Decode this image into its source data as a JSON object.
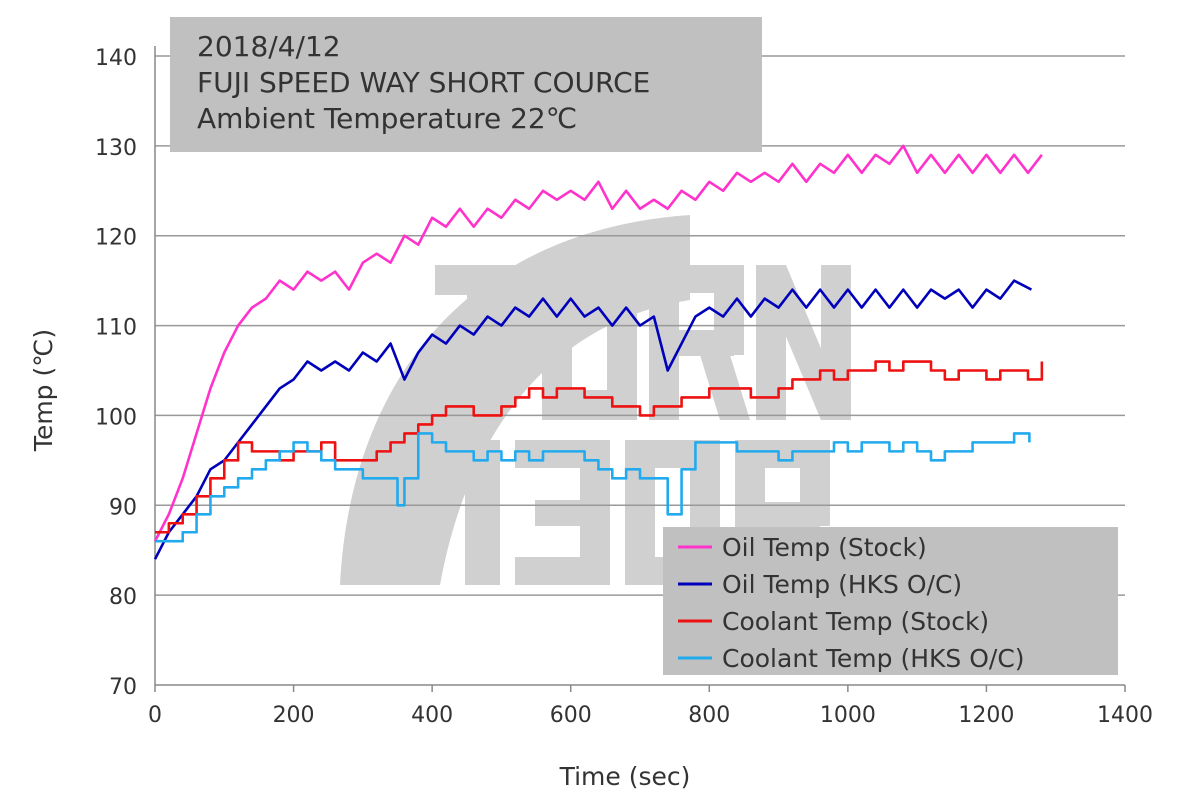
{
  "chart_data": {
    "type": "line",
    "annotation": [
      "2018/4/12",
      "FUJI SPEED WAY SHORT COURCE",
      "Ambient Temperature  22℃"
    ],
    "xlabel": "Time (sec)",
    "ylabel": "Temp (℃)",
    "xlim": [
      0,
      1400
    ],
    "ylim": [
      70,
      140
    ],
    "xticks": [
      0,
      200,
      400,
      600,
      800,
      1000,
      1200,
      1400
    ],
    "yticks": [
      70,
      80,
      90,
      100,
      110,
      120,
      130,
      140
    ],
    "grid": "horizontal",
    "legend_placement": "bottom-right",
    "watermark": "TURN 130R",
    "series": [
      {
        "name": "Oil Temp (Stock)",
        "color": "#ff33cc",
        "step": false,
        "x": [
          0,
          20,
          40,
          60,
          80,
          100,
          120,
          140,
          160,
          180,
          200,
          220,
          240,
          260,
          280,
          300,
          320,
          340,
          360,
          380,
          400,
          420,
          440,
          460,
          480,
          500,
          520,
          540,
          560,
          580,
          600,
          620,
          640,
          660,
          680,
          700,
          720,
          740,
          760,
          780,
          800,
          820,
          840,
          860,
          880,
          900,
          920,
          940,
          960,
          980,
          1000,
          1020,
          1040,
          1060,
          1080,
          1100,
          1120,
          1140,
          1160,
          1180,
          1200,
          1220,
          1240,
          1260,
          1280
        ],
        "y": [
          86,
          89,
          93,
          98,
          103,
          107,
          110,
          112,
          113,
          115,
          114,
          116,
          115,
          116,
          114,
          117,
          118,
          117,
          120,
          119,
          122,
          121,
          123,
          121,
          123,
          122,
          124,
          123,
          125,
          124,
          125,
          124,
          126,
          123,
          125,
          123,
          124,
          123,
          125,
          124,
          126,
          125,
          127,
          126,
          127,
          126,
          128,
          126,
          128,
          127,
          129,
          127,
          129,
          128,
          130,
          127,
          129,
          127,
          129,
          127,
          129,
          127,
          129,
          127,
          129
        ]
      },
      {
        "name": "Oil Temp (HKS O/C)",
        "color": "#0000bb",
        "step": false,
        "x": [
          0,
          20,
          40,
          60,
          80,
          100,
          120,
          140,
          160,
          180,
          200,
          220,
          240,
          260,
          280,
          300,
          320,
          340,
          360,
          380,
          400,
          420,
          440,
          460,
          480,
          500,
          520,
          540,
          560,
          580,
          600,
          620,
          640,
          660,
          680,
          700,
          720,
          740,
          760,
          780,
          800,
          820,
          840,
          860,
          880,
          900,
          920,
          940,
          960,
          980,
          1000,
          1020,
          1040,
          1060,
          1080,
          1100,
          1120,
          1140,
          1160,
          1180,
          1200,
          1220,
          1240,
          1265
        ],
        "y": [
          84,
          87,
          89,
          91,
          94,
          95,
          97,
          99,
          101,
          103,
          104,
          106,
          105,
          106,
          105,
          107,
          106,
          108,
          104,
          107,
          109,
          108,
          110,
          109,
          111,
          110,
          112,
          111,
          113,
          111,
          113,
          111,
          112,
          110,
          112,
          110,
          111,
          105,
          108,
          111,
          112,
          111,
          113,
          111,
          113,
          112,
          114,
          112,
          114,
          112,
          114,
          112,
          114,
          112,
          114,
          112,
          114,
          113,
          114,
          112,
          114,
          113,
          115,
          114
        ]
      },
      {
        "name": "Coolant Temp (Stock)",
        "color": "#ee1111",
        "step": true,
        "x": [
          0,
          20,
          40,
          60,
          80,
          100,
          120,
          140,
          160,
          180,
          200,
          220,
          240,
          260,
          280,
          300,
          320,
          340,
          360,
          380,
          400,
          420,
          440,
          460,
          480,
          500,
          520,
          540,
          560,
          580,
          600,
          620,
          640,
          660,
          680,
          700,
          720,
          740,
          760,
          780,
          800,
          820,
          840,
          860,
          880,
          900,
          920,
          940,
          960,
          980,
          1000,
          1020,
          1040,
          1060,
          1080,
          1100,
          1120,
          1140,
          1160,
          1180,
          1200,
          1220,
          1240,
          1260,
          1280
        ],
        "y": [
          87,
          88,
          89,
          91,
          93,
          95,
          97,
          96,
          96,
          95,
          96,
          96,
          97,
          95,
          95,
          95,
          96,
          97,
          98,
          99,
          100,
          101,
          101,
          100,
          100,
          101,
          102,
          103,
          102,
          103,
          103,
          102,
          102,
          101,
          101,
          100,
          101,
          101,
          102,
          102,
          103,
          103,
          103,
          102,
          102,
          103,
          104,
          104,
          105,
          104,
          105,
          105,
          106,
          105,
          106,
          106,
          105,
          104,
          105,
          105,
          104,
          105,
          105,
          104,
          106
        ]
      },
      {
        "name": "Coolant Temp (HKS O/C)",
        "color": "#22aaee",
        "step": true,
        "x": [
          0,
          20,
          40,
          60,
          80,
          100,
          120,
          140,
          160,
          180,
          200,
          220,
          240,
          260,
          280,
          300,
          320,
          340,
          350,
          360,
          380,
          400,
          420,
          440,
          460,
          480,
          500,
          520,
          540,
          560,
          580,
          600,
          620,
          640,
          660,
          680,
          700,
          720,
          740,
          760,
          780,
          800,
          820,
          840,
          860,
          880,
          900,
          920,
          940,
          960,
          980,
          1000,
          1020,
          1040,
          1060,
          1080,
          1100,
          1120,
          1140,
          1160,
          1180,
          1200,
          1220,
          1240,
          1262
        ],
        "y": [
          86,
          86,
          87,
          89,
          91,
          92,
          93,
          94,
          95,
          96,
          97,
          96,
          95,
          94,
          94,
          93,
          93,
          93,
          90,
          93,
          98,
          97,
          96,
          96,
          95,
          96,
          95,
          96,
          95,
          96,
          96,
          96,
          95,
          94,
          93,
          94,
          93,
          93,
          89,
          94,
          97,
          97,
          97,
          96,
          96,
          96,
          95,
          96,
          96,
          96,
          97,
          96,
          97,
          97,
          96,
          97,
          96,
          95,
          96,
          96,
          97,
          97,
          97,
          98,
          97
        ]
      }
    ]
  }
}
